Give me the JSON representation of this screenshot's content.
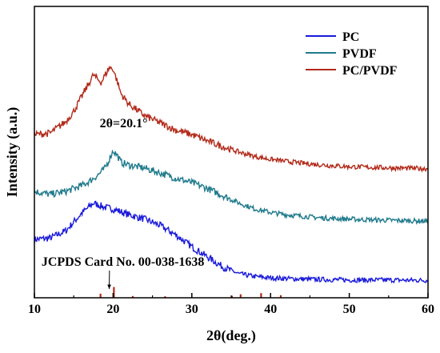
{
  "chart_data": {
    "type": "line",
    "xlabel": "2θ(deg.)",
    "ylabel": "Intensity (a.u.)",
    "xlim": [
      10,
      60
    ],
    "xticks": [
      10,
      20,
      30,
      40,
      50,
      60
    ],
    "yticks_shown": false,
    "grid": false,
    "legend_position": "top-right",
    "series": [
      {
        "name": "PC",
        "color": "#1a1adb",
        "x": [
          10,
          12,
          14,
          16,
          17.5,
          19,
          20,
          22,
          24,
          26,
          28,
          30,
          32,
          34,
          36,
          38,
          40,
          42,
          44,
          46,
          48,
          50,
          52,
          55,
          58,
          60
        ],
        "y": [
          0.2,
          0.205,
          0.23,
          0.29,
          0.325,
          0.31,
          0.305,
          0.285,
          0.27,
          0.248,
          0.215,
          0.175,
          0.14,
          0.105,
          0.082,
          0.073,
          0.068,
          0.066,
          0.064,
          0.063,
          0.062,
          0.061,
          0.061,
          0.061,
          0.06,
          0.06
        ]
      },
      {
        "name": "PVDF",
        "color": "#1f7a8c",
        "x": [
          10,
          12,
          14,
          16,
          17,
          18,
          19,
          19.5,
          20,
          20.5,
          21,
          22,
          24,
          26,
          28,
          30,
          32,
          34,
          36,
          38,
          40,
          42,
          44,
          46,
          48,
          50,
          52,
          55,
          58,
          60
        ],
        "y": [
          0.365,
          0.355,
          0.365,
          0.385,
          0.4,
          0.42,
          0.445,
          0.475,
          0.505,
          0.49,
          0.465,
          0.455,
          0.445,
          0.428,
          0.41,
          0.395,
          0.375,
          0.35,
          0.325,
          0.305,
          0.293,
          0.285,
          0.28,
          0.275,
          0.272,
          0.27,
          0.268,
          0.266,
          0.264,
          0.263
        ]
      },
      {
        "name": "PC/PVDF",
        "color": "#b22a1a",
        "x": [
          10,
          12,
          14,
          15,
          16,
          17,
          17.5,
          18,
          18.5,
          19,
          19.5,
          20,
          20.5,
          21,
          22,
          24,
          26,
          28,
          30,
          32,
          34,
          36,
          38,
          40,
          42,
          44,
          46,
          48,
          50,
          52,
          55,
          58,
          60
        ],
        "y": [
          0.56,
          0.565,
          0.605,
          0.64,
          0.69,
          0.74,
          0.765,
          0.75,
          0.74,
          0.765,
          0.79,
          0.785,
          0.745,
          0.7,
          0.665,
          0.625,
          0.6,
          0.575,
          0.56,
          0.538,
          0.518,
          0.5,
          0.485,
          0.475,
          0.468,
          0.462,
          0.457,
          0.453,
          0.45,
          0.448,
          0.446,
          0.444,
          0.443
        ]
      },
      {
        "name": "JCPDS Card No. 00-038-1638",
        "type": "stick",
        "color": "#b22a1a",
        "x": [
          18.4,
          20.1,
          22.5,
          26.6,
          35.1,
          36.2,
          38.8,
          41.3
        ],
        "y": [
          0.014,
          0.037,
          0.006,
          0.005,
          0.007,
          0.012,
          0.016,
          0.009
        ]
      }
    ],
    "annotations": [
      {
        "text": "2θ=20.1°",
        "x": 18.3,
        "y": 0.585
      },
      {
        "text": "JCPDS Card No. 00-038-1638",
        "x": 10.9,
        "y": 0.11,
        "arrow_to": [
          19.5,
          0.03
        ]
      }
    ]
  }
}
